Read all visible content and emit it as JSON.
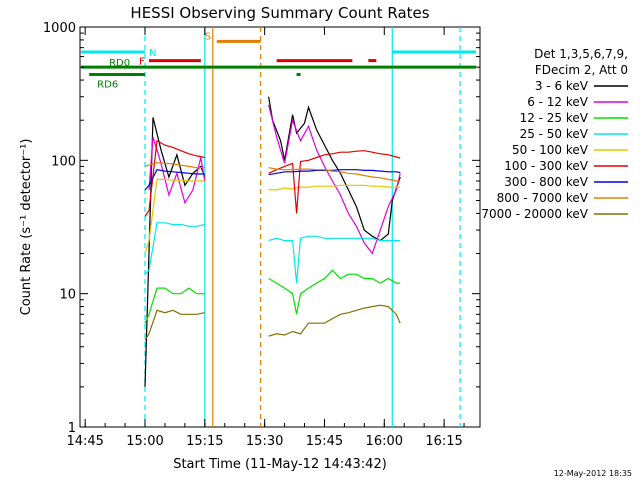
{
  "chart_data": {
    "type": "line",
    "title": "HESSI Observing Summary Count Rates",
    "xlabel": "Start Time (11-May-12 14:43:42)",
    "ylabel": "Count Rate (s⁻¹ detector⁻¹)",
    "yscale": "log",
    "ylim": [
      1,
      1000
    ],
    "xlim": [
      "14:43:42",
      "16:24:00"
    ],
    "x_ticks": [
      "14:45",
      "15:00",
      "15:15",
      "15:30",
      "15:45",
      "16:00",
      "16:15"
    ],
    "y_ticks": [
      "1",
      "10",
      "100",
      "1000"
    ],
    "grid": false,
    "legend_position": "right",
    "legend_header": [
      "Det 1,3,5,6,7,9,",
      "FDecim 2, Att 0"
    ],
    "footer": "12-May-2012 18:35",
    "series": [
      {
        "name": "3 - 6 keV",
        "color": "#000000",
        "x": [
          "15:00",
          "15:02",
          "15:04",
          "15:06",
          "15:08",
          "15:10",
          "15:12",
          "15:14",
          "15:15",
          "15:31",
          "15:32",
          "15:34",
          "15:35",
          "15:37",
          "15:38",
          "15:40",
          "15:41",
          "15:43",
          "15:45",
          "15:47",
          "15:49",
          "15:51",
          "15:53",
          "15:55",
          "15:57",
          "15:59",
          "16:01",
          "16:02",
          "16:04"
        ],
        "values": [
          2,
          210,
          120,
          75,
          110,
          65,
          80,
          90,
          75,
          300,
          200,
          140,
          100,
          220,
          160,
          190,
          250,
          170,
          130,
          100,
          80,
          60,
          45,
          30,
          27,
          25,
          28,
          50,
          75
        ]
      },
      {
        "name": "6 - 12 keV",
        "color": "#e000e0",
        "x": [
          "15:01",
          "15:02",
          "15:04",
          "15:06",
          "15:08",
          "15:10",
          "15:12",
          "15:14",
          "15:15",
          "15:31",
          "15:33",
          "15:35",
          "15:37",
          "15:39",
          "15:41",
          "15:43",
          "15:45",
          "15:47",
          "15:49",
          "15:51",
          "15:53",
          "15:55",
          "15:57",
          "15:59",
          "16:01",
          "16:03",
          "16:04"
        ],
        "values": [
          60,
          150,
          95,
          55,
          80,
          48,
          60,
          105,
          70,
          260,
          150,
          95,
          200,
          140,
          180,
          120,
          90,
          70,
          55,
          40,
          32,
          24,
          20,
          30,
          45,
          60,
          80
        ]
      },
      {
        "name": "12 - 25 keV",
        "color": "#00e000",
        "x": [
          "15:00",
          "15:01",
          "15:03",
          "15:05",
          "15:07",
          "15:09",
          "15:11",
          "15:13",
          "15:15",
          "15:31",
          "15:33",
          "15:35",
          "15:37",
          "15:38",
          "15:39",
          "15:41",
          "15:43",
          "15:45",
          "15:47",
          "15:49",
          "15:51",
          "15:53",
          "15:55",
          "15:57",
          "15:59",
          "16:01",
          "16:03",
          "16:04"
        ],
        "values": [
          6,
          7,
          11,
          11,
          10,
          10,
          11,
          10,
          10,
          13,
          12,
          11,
          10,
          7,
          10,
          11,
          12,
          13,
          15,
          13,
          14,
          14,
          13,
          13,
          12,
          13,
          12,
          12
        ]
      },
      {
        "name": "25 - 50 keV",
        "color": "#00e8e8",
        "x": [
          "15:00",
          "15:01",
          "15:03",
          "15:05",
          "15:07",
          "15:09",
          "15:11",
          "15:13",
          "15:15",
          "15:31",
          "15:33",
          "15:35",
          "15:37",
          "15:38",
          "15:39",
          "15:41",
          "15:43",
          "15:45",
          "15:47",
          "15:49",
          "15:51",
          "15:53",
          "15:55",
          "15:57",
          "15:59",
          "16:01",
          "16:03",
          "16:04"
        ],
        "values": [
          14,
          15,
          34,
          34,
          33,
          33,
          32,
          32,
          33,
          25,
          26,
          25,
          25,
          12,
          26,
          27,
          27,
          26,
          26,
          26,
          26,
          26,
          26,
          26,
          25,
          25,
          25,
          25
        ]
      },
      {
        "name": "50 - 100 keV",
        "color": "#e0c800",
        "x": [
          "15:00",
          "15:01",
          "15:03",
          "15:05",
          "15:07",
          "15:09",
          "15:11",
          "15:13",
          "15:15",
          "15:31",
          "15:33",
          "15:35",
          "15:37",
          "15:39",
          "15:41",
          "15:43",
          "15:45",
          "15:47",
          "15:49",
          "15:51",
          "15:53",
          "15:55",
          "15:57",
          "15:59",
          "16:01",
          "16:03",
          "16:04"
        ],
        "values": [
          20,
          25,
          72,
          72,
          71,
          71,
          70,
          70,
          70,
          60,
          60,
          62,
          61,
          63,
          63,
          64,
          64,
          64,
          65,
          65,
          65,
          65,
          64,
          64,
          63,
          63,
          63
        ]
      },
      {
        "name": "100 - 300 keV",
        "color": "#e00000",
        "x": [
          "15:00",
          "15:01",
          "15:03",
          "15:05",
          "15:07",
          "15:09",
          "15:11",
          "15:13",
          "15:15",
          "15:31",
          "15:33",
          "15:35",
          "15:37",
          "15:38",
          "15:39",
          "15:41",
          "15:43",
          "15:45",
          "15:47",
          "15:49",
          "15:51",
          "15:53",
          "15:55",
          "15:57",
          "15:59",
          "16:01",
          "16:03",
          "16:04"
        ],
        "values": [
          38,
          42,
          140,
          130,
          125,
          118,
          112,
          108,
          105,
          80,
          85,
          90,
          95,
          40,
          98,
          100,
          105,
          110,
          112,
          115,
          115,
          117,
          118,
          115,
          112,
          110,
          106,
          104
        ]
      },
      {
        "name": "300 - 800 keV",
        "color": "#0000e0",
        "x": [
          "15:00",
          "15:01",
          "15:03",
          "15:05",
          "15:07",
          "15:09",
          "15:11",
          "15:13",
          "15:15",
          "15:31",
          "15:33",
          "15:35",
          "15:37",
          "15:39",
          "15:41",
          "15:43",
          "15:45",
          "15:47",
          "15:49",
          "15:51",
          "15:53",
          "15:55",
          "15:57",
          "15:59",
          "16:01",
          "16:03",
          "16:04"
        ],
        "values": [
          60,
          65,
          85,
          83,
          82,
          81,
          80,
          79,
          79,
          78,
          80,
          82,
          82,
          83,
          83,
          84,
          84,
          84,
          85,
          85,
          85,
          84,
          84,
          83,
          82,
          82,
          81
        ]
      },
      {
        "name": "800 - 7000 keV",
        "color": "#e08000",
        "x": [
          "15:00",
          "15:01",
          "15:03",
          "15:05",
          "15:07",
          "15:09",
          "15:11",
          "15:13",
          "15:15",
          "15:31",
          "15:33",
          "15:35",
          "15:37",
          "15:39",
          "15:41",
          "15:43",
          "15:45",
          "15:47",
          "15:49",
          "15:51",
          "15:53",
          "15:55",
          "15:57",
          "15:59",
          "16:01",
          "16:03",
          "16:04"
        ],
        "values": [
          90,
          92,
          96,
          95,
          94,
          92,
          90,
          88,
          88,
          88,
          86,
          85,
          85,
          86,
          86,
          85,
          85,
          83,
          82,
          80,
          79,
          77,
          75,
          74,
          72,
          70,
          70
        ]
      },
      {
        "name": "7000 - 20000 keV",
        "color": "#807000",
        "x": [
          "15:00",
          "15:01",
          "15:03",
          "15:05",
          "15:07",
          "15:09",
          "15:11",
          "15:13",
          "15:15",
          "15:31",
          "15:33",
          "15:35",
          "15:37",
          "15:39",
          "15:41",
          "15:43",
          "15:45",
          "15:47",
          "15:49",
          "15:51",
          "15:53",
          "15:55",
          "15:57",
          "15:59",
          "16:01",
          "16:03",
          "16:04"
        ],
        "values": [
          4.5,
          5,
          7.5,
          7.2,
          7.5,
          7,
          7,
          7,
          7.2,
          4.8,
          5,
          4.9,
          5.2,
          5,
          6,
          6,
          6,
          6.5,
          7,
          7.2,
          7.5,
          7.8,
          8,
          8.2,
          8,
          7,
          6
        ]
      }
    ],
    "flags": [
      {
        "label": "N",
        "color": "#00e8e8",
        "level": 650,
        "x_start": "14:44",
        "x_end": "15:00"
      },
      {
        "label": "",
        "color": "#00e8e8",
        "level": 650,
        "x_start": "16:02",
        "x_end": "16:23"
      },
      {
        "label": "F",
        "color": "#e00000",
        "level": 560,
        "x_start": "15:01",
        "x_end": "15:14"
      },
      {
        "label": "",
        "color": "#e00000",
        "level": 560,
        "x_start": "15:33",
        "x_end": "15:52"
      },
      {
        "label": "",
        "color": "#e00000",
        "level": 560,
        "x_start": "15:56",
        "x_end": "15:58"
      },
      {
        "label": "S",
        "color": "#e08000",
        "level": 780,
        "x_start": "15:18",
        "x_end": "15:29"
      },
      {
        "label": "RD0",
        "color": "#008000",
        "level": 500,
        "x_start": "14:44",
        "x_end": "16:23"
      },
      {
        "label": "RD6",
        "color": "#008000",
        "level": 440,
        "x_start": "14:46",
        "x_end": "15:00"
      },
      {
        "label": "",
        "color": "#008000",
        "level": 440,
        "x_start": "15:38",
        "x_end": "15:39"
      }
    ],
    "vlines": [
      {
        "x": "15:00",
        "color": "#00e8e8",
        "style": "dashed"
      },
      {
        "x": "15:15",
        "color": "#00e8e8",
        "style": "solid"
      },
      {
        "x": "15:17",
        "color": "#e08000",
        "style": "solid"
      },
      {
        "x": "15:29",
        "color": "#e08000",
        "style": "dashed"
      },
      {
        "x": "16:02",
        "color": "#00e8e8",
        "style": "solid"
      },
      {
        "x": "16:19",
        "color": "#00e8e8",
        "style": "dashed"
      }
    ]
  }
}
